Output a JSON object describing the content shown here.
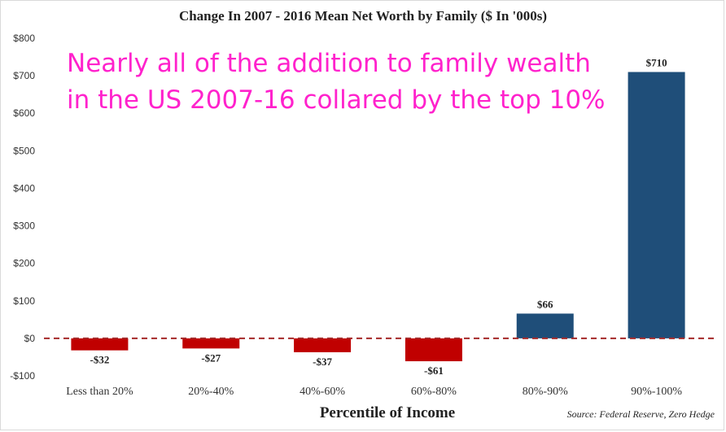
{
  "chart_data": {
    "type": "bar",
    "title": "Change In 2007 - 2016 Mean Net Worth by Family ($ In '000s)",
    "xlabel": "Percentile of Income",
    "ylabel": "",
    "categories": [
      "Less than 20%",
      "20%-40%",
      "40%-60%",
      "60%-80%",
      "80%-90%",
      "90%-100%"
    ],
    "values": [
      -32,
      -27,
      -37,
      -61,
      66,
      710
    ],
    "data_labels": [
      "-$32",
      "-$27",
      "-$37",
      "-$61",
      "$66",
      "$710"
    ],
    "ylim": [
      -100,
      800
    ],
    "yticks": [
      -100,
      0,
      100,
      200,
      300,
      400,
      500,
      600,
      700,
      800
    ],
    "ytick_labels": [
      "-$100",
      "$0",
      "$100",
      "$200",
      "$300",
      "$400",
      "$500",
      "$600",
      "$700",
      "$800"
    ],
    "grid": false,
    "zero_line": "dashed",
    "colors": {
      "negative": "#c00000",
      "positive": "#1f4e79",
      "zero_line": "#a52a2a"
    }
  },
  "annotation": {
    "line1": "Nearly all of the addition to family wealth",
    "line2": "in the US 2007-16 collared by the top 10%",
    "color": "#ff22cc"
  },
  "source": "Source: Federal Reserve, Zero Hedge"
}
